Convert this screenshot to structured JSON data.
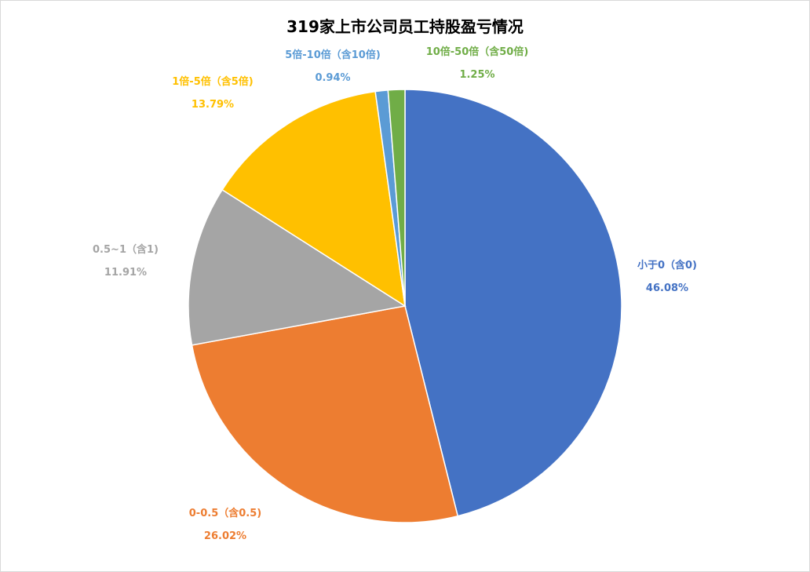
{
  "chart_data": {
    "type": "pie",
    "title": "319家上市公司员工持股盈亏情况",
    "slices": [
      {
        "label": "小于0（含0)",
        "value": 46.08,
        "value_label": "46.08%",
        "color": "#4472C4"
      },
      {
        "label": "0-0.5（含0.5)",
        "value": 26.02,
        "value_label": "26.02%",
        "color": "#ED7D31"
      },
      {
        "label": "0.5~1（含1)",
        "value": 11.91,
        "value_label": "11.91%",
        "color": "#A5A5A5"
      },
      {
        "label": "1倍-5倍（含5倍)",
        "value": 13.79,
        "value_label": "13.79%",
        "color": "#FFC000"
      },
      {
        "label": "5倍-10倍（含10倍)",
        "value": 0.94,
        "value_label": "0.94%",
        "color": "#5B9BD5"
      },
      {
        "label": "10倍-50倍（含50倍)",
        "value": 1.25,
        "value_label": "1.25%",
        "color": "#70AD47"
      }
    ],
    "start_angle": "12 o'clock",
    "direction": "clockwise",
    "legend": "none",
    "data_labels": "outside"
  }
}
